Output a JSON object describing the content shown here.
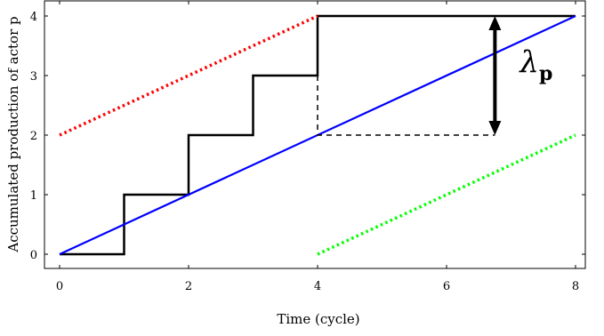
{
  "chart_data": {
    "type": "line",
    "xlabel": "Time (cycle)",
    "ylabel": "Accumulated production of actor p",
    "xlim": [
      0,
      8.5
    ],
    "ylim": [
      -0.25,
      4.2
    ],
    "x_ticks": [
      0,
      2,
      4,
      6,
      8
    ],
    "y_ticks": [
      0,
      1,
      2,
      3,
      4
    ],
    "grid": false,
    "legend": "none",
    "annotation": {
      "text": "λ",
      "subscript": "p",
      "arrow_x": 6.75,
      "arrow_from_y": 2,
      "arrow_to_y": 4
    },
    "series": [
      {
        "style": "step",
        "color": "#000000",
        "dash": "solid",
        "points": [
          [
            0,
            0
          ],
          [
            1,
            0
          ],
          [
            1,
            1
          ],
          [
            2,
            1
          ],
          [
            2,
            2
          ],
          [
            3,
            2
          ],
          [
            3,
            3
          ],
          [
            4,
            3
          ],
          [
            4,
            4
          ],
          [
            8,
            4
          ]
        ]
      },
      {
        "style": "line",
        "color": "#0000ff",
        "dash": "solid",
        "points": [
          [
            0,
            0
          ],
          [
            8,
            4
          ]
        ]
      },
      {
        "style": "line",
        "color": "#ff0000",
        "dash": "dotted",
        "points": [
          [
            0,
            2
          ],
          [
            4,
            4
          ]
        ]
      },
      {
        "style": "line",
        "color": "#00ff00",
        "dash": "dotted",
        "points": [
          [
            4,
            0
          ],
          [
            8,
            2
          ]
        ]
      },
      {
        "style": "line",
        "color": "#000000",
        "dash": "dashed",
        "points": [
          [
            4,
            3
          ],
          [
            4,
            2
          ],
          [
            6.75,
            2
          ]
        ]
      }
    ]
  }
}
